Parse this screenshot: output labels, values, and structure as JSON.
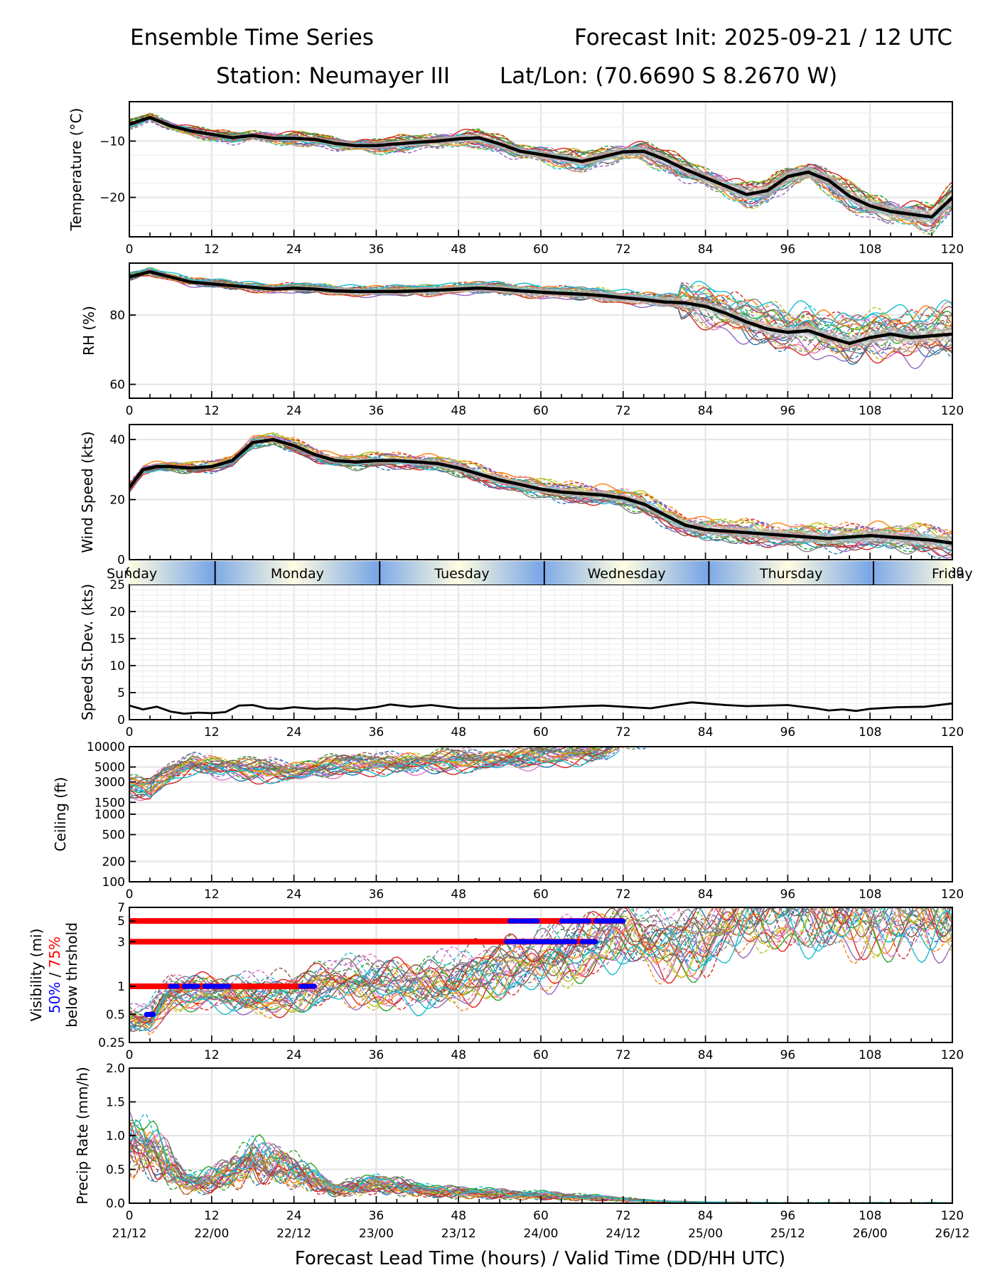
{
  "header": {
    "title_left": "Ensemble Time Series",
    "title_right": "Forecast Init: 2025-09-21 / 12 UTC",
    "station": "Station: Neumayer III",
    "latlon": "Lat/Lon: (70.6690 S 8.2670 W)"
  },
  "xaxis": {
    "label": "Forecast Lead Time (hours) / Valid Time (DD/HH UTC)",
    "ticks": [
      0,
      12,
      24,
      36,
      48,
      60,
      72,
      84,
      96,
      108,
      120
    ],
    "valid_labels": [
      "21/12",
      "22/00",
      "22/12",
      "23/00",
      "23/12",
      "24/00",
      "24/12",
      "25/00",
      "25/12",
      "26/00",
      "26/12"
    ],
    "range": [
      0,
      120
    ]
  },
  "day_band": {
    "days": [
      {
        "name": "Sunday",
        "start": 0,
        "end": 12.5
      },
      {
        "name": "Monday",
        "start": 12.5,
        "end": 36.5
      },
      {
        "name": "Tuesday",
        "start": 36.5,
        "end": 60.5
      },
      {
        "name": "Wednesday",
        "start": 60.5,
        "end": 84.5
      },
      {
        "name": "Thursday",
        "start": 84.5,
        "end": 108.5
      },
      {
        "name": "Friday",
        "start": 108.5,
        "end": 120
      }
    ],
    "colors": {
      "midday": "#fffde0",
      "midnight": "#7aa6e6"
    }
  },
  "chart_data": [
    {
      "type": "line",
      "id": "temperature",
      "ylabel": "Temperature (°C)",
      "ylim": [
        -27,
        -3
      ],
      "yticks": [
        -10,
        -20
      ],
      "ytick_labels": [
        "−10",
        "−20"
      ],
      "scale": "linear",
      "mean_series": {
        "name": "ensemble mean",
        "x": [
          0,
          3,
          6,
          9,
          12,
          15,
          18,
          21,
          24,
          27,
          30,
          33,
          36,
          39,
          42,
          45,
          48,
          51,
          54,
          57,
          60,
          63,
          66,
          69,
          72,
          75,
          78,
          81,
          84,
          87,
          90,
          93,
          96,
          99,
          102,
          105,
          108,
          111,
          114,
          117,
          120
        ],
        "y": [
          -7.0,
          -5.8,
          -7.3,
          -8.2,
          -8.8,
          -9.4,
          -9.0,
          -9.5,
          -9.5,
          -9.7,
          -10.4,
          -10.8,
          -10.8,
          -10.5,
          -10.2,
          -10.0,
          -9.6,
          -9.4,
          -10.5,
          -11.8,
          -12.4,
          -13.0,
          -13.6,
          -12.8,
          -11.9,
          -11.8,
          -13.2,
          -15.0,
          -16.5,
          -18.0,
          -19.5,
          -18.8,
          -16.3,
          -15.5,
          -17.0,
          -19.8,
          -21.5,
          -22.5,
          -23.0,
          -23.5,
          -20.0
        ]
      },
      "spread_band": true,
      "member_count": 30
    },
    {
      "type": "line",
      "id": "rh",
      "ylabel": "RH (%)",
      "ylim": [
        56,
        95
      ],
      "yticks": [
        60,
        80
      ],
      "ytick_labels": [
        "60",
        "80"
      ],
      "scale": "linear",
      "mean_series": {
        "name": "ensemble mean",
        "x": [
          0,
          3,
          6,
          9,
          12,
          15,
          18,
          21,
          24,
          27,
          30,
          33,
          36,
          39,
          42,
          45,
          48,
          51,
          54,
          57,
          60,
          63,
          66,
          69,
          72,
          75,
          78,
          81,
          84,
          87,
          90,
          93,
          96,
          99,
          102,
          105,
          108,
          111,
          114,
          117,
          120
        ],
        "y": [
          91.0,
          92.5,
          91.0,
          89.5,
          89.0,
          88.5,
          88.0,
          87.5,
          87.8,
          87.5,
          87.0,
          86.8,
          86.8,
          86.8,
          87.0,
          87.2,
          87.5,
          87.8,
          87.5,
          87.0,
          86.6,
          86.3,
          86.0,
          85.6,
          85.0,
          84.5,
          83.8,
          83.5,
          82.5,
          80.5,
          78.0,
          76.0,
          75.0,
          75.5,
          73.5,
          71.8,
          73.5,
          74.5,
          73.5,
          74.0,
          74.5
        ]
      },
      "spread_band": true,
      "member_count": 30
    },
    {
      "type": "line",
      "id": "wind_speed",
      "ylabel": "Wind Speed (kts)",
      "ylim": [
        0,
        45
      ],
      "yticks": [
        0,
        20,
        40
      ],
      "ytick_labels": [
        "0",
        "20",
        "40"
      ],
      "scale": "linear",
      "mean_series": {
        "name": "ensemble mean",
        "x": [
          0,
          2,
          4,
          6,
          9,
          12,
          15,
          18,
          21,
          24,
          27,
          30,
          33,
          36,
          39,
          42,
          45,
          48,
          51,
          54,
          57,
          60,
          63,
          66,
          69,
          72,
          75,
          78,
          81,
          84,
          87,
          90,
          93,
          96,
          99,
          102,
          105,
          108,
          111,
          114,
          117,
          120
        ],
        "y": [
          24.0,
          30.0,
          31.0,
          31.0,
          30.5,
          31.0,
          33.0,
          39.0,
          40.0,
          38.0,
          35.0,
          33.0,
          32.5,
          33.0,
          33.0,
          32.5,
          32.0,
          30.5,
          28.5,
          26.5,
          25.0,
          23.5,
          22.5,
          22.0,
          21.5,
          20.5,
          18.5,
          15.0,
          11.5,
          10.0,
          9.5,
          9.0,
          8.5,
          8.0,
          7.5,
          7.0,
          7.5,
          8.0,
          7.5,
          7.0,
          6.5,
          5.5
        ]
      },
      "spread_band": true,
      "member_count": 30
    },
    {
      "type": "line",
      "id": "speed_stdev",
      "ylabel": "Speed St.Dev. (kts)",
      "ylim": [
        0,
        25
      ],
      "yticks": [
        0,
        5,
        10,
        15,
        20,
        25
      ],
      "ytick_labels": [
        "0",
        "5",
        "10",
        "15",
        "20",
        "25"
      ],
      "scale": "linear",
      "series": [
        {
          "name": "wind speed standard deviation",
          "x": [
            0,
            2,
            4,
            6,
            8,
            10,
            12,
            14,
            16,
            18,
            20,
            22,
            24,
            27,
            30,
            33,
            36,
            38,
            41,
            44,
            48,
            54,
            60,
            66,
            69,
            72,
            76,
            79,
            82,
            84,
            87,
            90,
            96,
            100,
            102,
            104,
            106,
            108,
            112,
            116,
            120
          ],
          "y": [
            2.6,
            1.9,
            2.4,
            1.5,
            1.1,
            1.3,
            1.2,
            1.4,
            2.6,
            2.7,
            2.1,
            2.0,
            2.3,
            2.0,
            2.1,
            1.9,
            2.3,
            2.8,
            2.4,
            2.7,
            2.1,
            2.1,
            2.2,
            2.5,
            2.6,
            2.4,
            2.1,
            2.7,
            3.2,
            3.0,
            2.7,
            2.5,
            2.7,
            2.1,
            1.7,
            1.9,
            1.6,
            2.0,
            2.3,
            2.4,
            3.0
          ]
        }
      ]
    },
    {
      "type": "line",
      "id": "ceiling",
      "ylabel": "Ceiling (ft)",
      "ylim": [
        100,
        10000
      ],
      "yticks": [
        100,
        200,
        500,
        1000,
        1500,
        3000,
        5000,
        10000
      ],
      "ytick_labels": [
        "100",
        "200",
        "500",
        "1000",
        "1500",
        "3000",
        "5000",
        "10000"
      ],
      "scale": "log",
      "envelope": {
        "x": [
          0,
          3,
          6,
          9,
          12,
          18,
          24,
          30,
          36,
          42,
          48,
          54,
          60,
          66,
          70,
          72
        ],
        "y": [
          2500,
          2300,
          4000,
          5500,
          5200,
          4400,
          4300,
          5200,
          5500,
          5800,
          6000,
          6500,
          7000,
          8000,
          9000,
          10000
        ]
      },
      "member_count": 30
    },
    {
      "type": "line",
      "id": "visibility",
      "ylabel": "Visibility (mi)",
      "ylabel_sub": {
        "p50": "50%",
        "sep": " / ",
        "p75": "75%",
        "tail": "below thrshold"
      },
      "ylim": [
        0.25,
        7
      ],
      "yticks": [
        0.25,
        0.5,
        1,
        3,
        5,
        7
      ],
      "ytick_labels": [
        "0.25",
        "0.5",
        "1",
        "3",
        "5",
        "7"
      ],
      "scale": "log",
      "thresholds": [
        {
          "value": 5,
          "p75_range": [
            0,
            72
          ],
          "p50_segments": [
            [
              55.5,
              56.5
            ],
            [
              57,
              59.5
            ],
            [
              63,
              63.5
            ],
            [
              64,
              67
            ],
            [
              68,
              72
            ]
          ]
        },
        {
          "value": 3,
          "p75_range": [
            0,
            68
          ],
          "p50_segments": [
            [
              55,
              58.5
            ],
            [
              59,
              64
            ],
            [
              64.5,
              65
            ],
            [
              66,
              68
            ]
          ]
        },
        {
          "value": 1,
          "p75_range": [
            0,
            27
          ],
          "p50_segments": [
            [
              6,
              7
            ],
            [
              8,
              10
            ],
            [
              11,
              12.5
            ],
            [
              13,
              14.5
            ],
            [
              25,
              26
            ],
            [
              26.5,
              27
            ]
          ]
        },
        {
          "value": 0.5,
          "p75_range": [],
          "p50_segments": [
            [
              2.5,
              3.5
            ]
          ]
        }
      ],
      "envelope": {
        "x": [
          0,
          3,
          6,
          12,
          18,
          24,
          30,
          36,
          42,
          48,
          54,
          60,
          66,
          72,
          78,
          84,
          90
        ],
        "y": [
          0.45,
          0.45,
          0.85,
          0.9,
          0.8,
          0.85,
          1.2,
          1.1,
          1.05,
          1.2,
          1.6,
          2.0,
          2.5,
          4.0,
          3.0,
          3.2,
          6.5
        ]
      },
      "threshold_colors": {
        "p50": "#0000ff",
        "p75": "#ff0000"
      },
      "member_count": 30
    },
    {
      "type": "line",
      "id": "precip_rate",
      "ylabel": "Precip Rate (mm/h)",
      "ylim": [
        0,
        2.0
      ],
      "yticks": [
        0.0,
        0.5,
        1.0,
        1.5,
        2.0
      ],
      "ytick_labels": [
        "0.0",
        "0.5",
        "1.0",
        "1.5",
        "2.0"
      ],
      "scale": "linear",
      "envelope": {
        "x": [
          0,
          2,
          4,
          6,
          8,
          10,
          12,
          14,
          16,
          18,
          20,
          22,
          24,
          26,
          28,
          30,
          33,
          36,
          40,
          44,
          48,
          52,
          56,
          60,
          64,
          68,
          72,
          76,
          80,
          84,
          90,
          96,
          100,
          120
        ],
        "y": [
          0.95,
          0.85,
          0.75,
          0.55,
          0.35,
          0.3,
          0.35,
          0.45,
          0.55,
          0.65,
          0.6,
          0.6,
          0.5,
          0.4,
          0.3,
          0.2,
          0.25,
          0.3,
          0.25,
          0.18,
          0.17,
          0.15,
          0.13,
          0.12,
          0.1,
          0.08,
          0.06,
          0.03,
          0.02,
          0.01,
          0.005,
          0.0,
          0.0,
          0.0
        ]
      },
      "member_count": 30
    }
  ],
  "member_colors": [
    "#1f77b4",
    "#ff7f0e",
    "#2ca02c",
    "#d62728",
    "#9467bd",
    "#8c564b",
    "#e377c2",
    "#7f7f7f",
    "#bcbd22",
    "#17becf"
  ]
}
